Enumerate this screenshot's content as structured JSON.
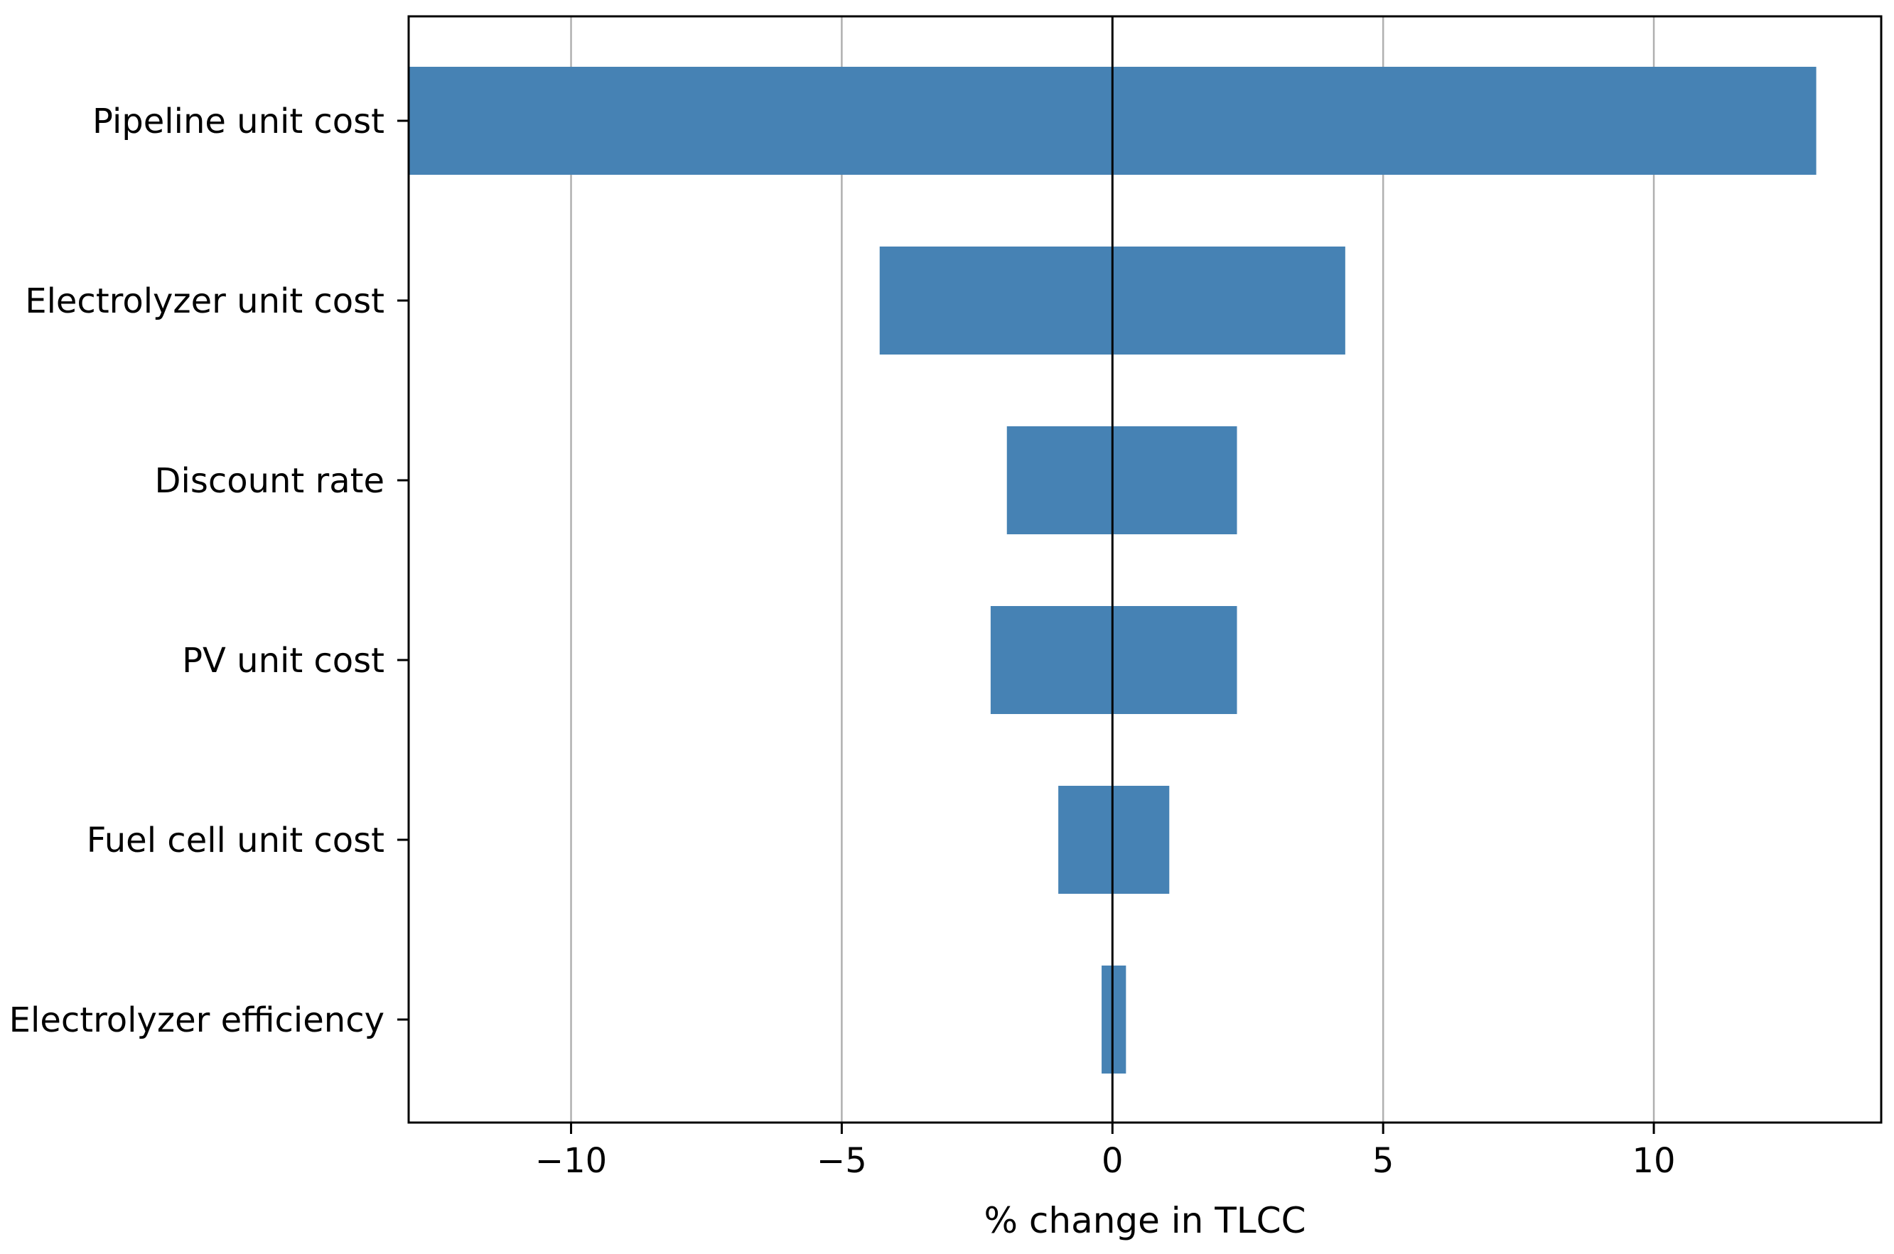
{
  "chart_data": {
    "type": "bar",
    "orientation": "horizontal",
    "style": "tornado",
    "categories": [
      "Pipeline unit cost",
      "Electrolyzer unit cost",
      "Discount rate",
      "PV unit cost",
      "Fuel cell unit cost",
      "Electrolyzer efficiency"
    ],
    "low": [
      -13.0,
      -4.3,
      -1.95,
      -2.25,
      -1.0,
      -0.2
    ],
    "high": [
      13.0,
      4.3,
      2.3,
      2.3,
      1.05,
      0.25
    ],
    "xlabel": "% change in TLCC",
    "ylabel": "",
    "title": "",
    "xlim": [
      -13.0,
      14.2
    ],
    "xticks": [
      -10,
      -5,
      0,
      5,
      10
    ],
    "xtick_labels": [
      "−10",
      "−5",
      "0",
      "5",
      "10"
    ],
    "grid": "vertical",
    "zero_line": true,
    "bar_color": "#4682b4",
    "grid_color": "#b0b0b0",
    "axis_color": "#000000"
  }
}
